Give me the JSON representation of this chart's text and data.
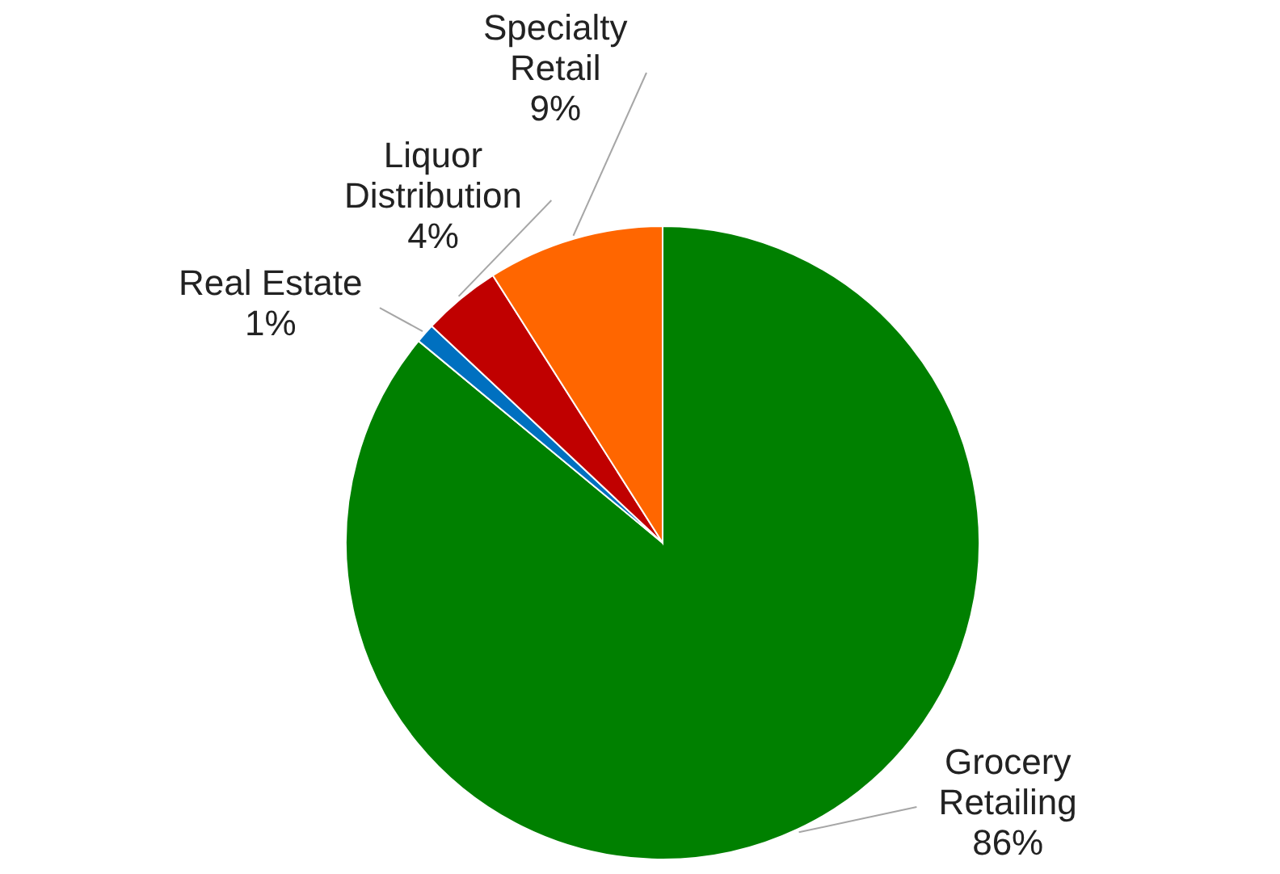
{
  "chart_data": {
    "type": "pie",
    "categories": [
      "Grocery Retailing",
      "Real Estate",
      "Liquor Distribution",
      "Specialty Retail"
    ],
    "values": [
      86,
      1,
      4,
      9
    ],
    "colors": [
      "#008000",
      "#0070c0",
      "#c00000",
      "#ff6600"
    ],
    "value_labels": [
      "86%",
      "1%",
      "4%",
      "9%"
    ]
  }
}
